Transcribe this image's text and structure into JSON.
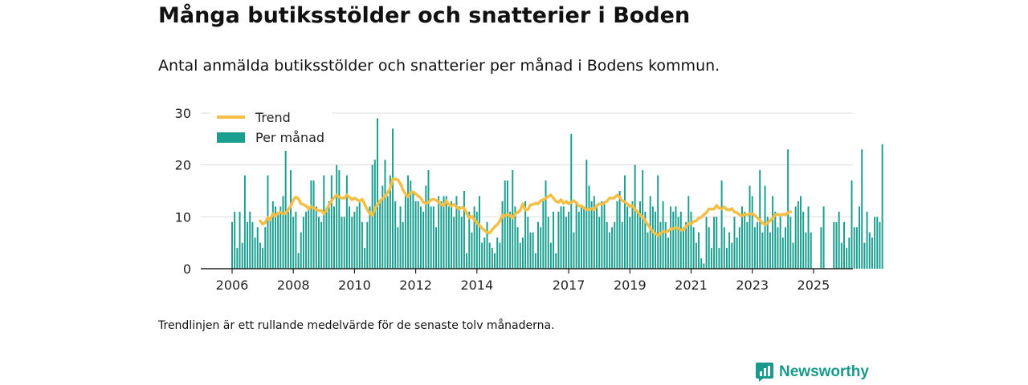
{
  "header": {
    "title": "Många butiksstölder och snatterier i Boden",
    "subtitle": "Antal anmälda butiksstölder och snatterier per månad i Bodens kommun."
  },
  "footnote": "Trendlinjen är ett rullande medelvärde för de senaste tolv månaderna.",
  "brand": {
    "name": "Newsworthy",
    "icon": "newsworthy-logo-icon"
  },
  "colors": {
    "bars": "#1a9e8f",
    "trend": "#f5bf45",
    "grid": "#dddddd",
    "axis": "#222222",
    "brand": "#1a9a8a"
  },
  "chart_data": {
    "type": "bar",
    "title": "Många butiksstölder och snatterier i Boden",
    "subtitle": "Antal anmälda butiksstölder och snatterier per månad i Bodens kommun.",
    "xlabel": "",
    "ylabel": "",
    "ylim": [
      0,
      30
    ],
    "yticks": [
      0,
      10,
      20,
      30
    ],
    "xticks": [
      "2006",
      "2008",
      "2010",
      "2012",
      "2014",
      "2017",
      "2019",
      "2021",
      "2023",
      "2025"
    ],
    "grid": true,
    "legend": {
      "position": "top-left",
      "entries": [
        "Trend",
        "Per månad"
      ]
    },
    "start": "2006-01",
    "series": [
      {
        "name": "Per månad",
        "type": "bar",
        "values": [
          9,
          11,
          4,
          11,
          5,
          18,
          9,
          11,
          9,
          6,
          8,
          5,
          4,
          8,
          18,
          10,
          13,
          12,
          11,
          12,
          14,
          24,
          11,
          19,
          10,
          11,
          3,
          7,
          10,
          11,
          12,
          17,
          17,
          12,
          10,
          9,
          18,
          11,
          13,
          18,
          12,
          20,
          19,
          10,
          10,
          18,
          12,
          10,
          11,
          12,
          13,
          9,
          4,
          9,
          12,
          20,
          21,
          29,
          13,
          16,
          21,
          14,
          18,
          27,
          13,
          8,
          12,
          9,
          14,
          18,
          17,
          15,
          13,
          13,
          12,
          11,
          16,
          19,
          12,
          12,
          8,
          14,
          13,
          14,
          14,
          12,
          13,
          10,
          14,
          12,
          10,
          15,
          3,
          11,
          7,
          12,
          11,
          14,
          5,
          6,
          9,
          5,
          4,
          3,
          6,
          5,
          13,
          17,
          17,
          11,
          19,
          12,
          8,
          5,
          6,
          13,
          10,
          7,
          7,
          3,
          9,
          8,
          13,
          17,
          10,
          5,
          11,
          3,
          11,
          12,
          12,
          10,
          11,
          26,
          7,
          13,
          11,
          12,
          12,
          21,
          16,
          13,
          14,
          12,
          10,
          13,
          13,
          9,
          7,
          8,
          9,
          13,
          15,
          9,
          18,
          12,
          10,
          13,
          20,
          11,
          13,
          19,
          11,
          7,
          14,
          12,
          11,
          18,
          9,
          13,
          9,
          6,
          12,
          11,
          12,
          10,
          11,
          8,
          9,
          14,
          11,
          8,
          5,
          7,
          2,
          1,
          10,
          8,
          4,
          10,
          10,
          4,
          17,
          8,
          4,
          7,
          5,
          10,
          6,
          8,
          12,
          11,
          9,
          16,
          14,
          8,
          9,
          19,
          7,
          16,
          10,
          7,
          14,
          11,
          8,
          10,
          6,
          8,
          23,
          10,
          5,
          12,
          13,
          14,
          11,
          7,
          12,
          7,
          0,
          0,
          0,
          8,
          12,
          0,
          0,
          0,
          9,
          9,
          11,
          5,
          9,
          4,
          6,
          17,
          8,
          8,
          12,
          23,
          5,
          11,
          7,
          6,
          10,
          10,
          9,
          24
        ]
      },
      {
        "name": "Trend",
        "type": "line",
        "start_offset": 11,
        "values": [
          9.2,
          8.6,
          8.9,
          9.9,
          9.5,
          10.6,
          10.2,
          10.7,
          10.9,
          10.6,
          10.7,
          11.4,
          12.1,
          13.3,
          13.8,
          13.5,
          12.5,
          12.4,
          12.1,
          11.5,
          12.0,
          11.7,
          11.4,
          11.2,
          11.2,
          10.6,
          11.3,
          12.3,
          13.1,
          13.7,
          14.2,
          13.8,
          13.6,
          13.6,
          14.2,
          13.8,
          13.3,
          13.6,
          13.3,
          13.0,
          13.4,
          12.4,
          11.4,
          10.6,
          10.3,
          11.6,
          12.3,
          13.1,
          13.5,
          14.0,
          14.7,
          15.5,
          17.3,
          17.3,
          17.1,
          16.4,
          15.2,
          14.4,
          13.9,
          14.7,
          14.8,
          14.4,
          14.0,
          13.6,
          12.8,
          12.6,
          12.8,
          13.3,
          13.4,
          13.2,
          12.9,
          12.3,
          12.2,
          13.1,
          12.4,
          12.1,
          12.4,
          11.9,
          11.5,
          11.8,
          11.7,
          10.7,
          9.8,
          10.1,
          9.4,
          8.9,
          8.4,
          7.8,
          7.4,
          7.0,
          6.9,
          7.5,
          8.1,
          8.5,
          9.2,
          10.3,
          10.2,
          10.5,
          10.2,
          9.8,
          10.6,
          10.8,
          11.3,
          12.5,
          11.3,
          11.4,
          12.3,
          12.4,
          12.6,
          12.5,
          13.1,
          13.3,
          13.6,
          13.9,
          14.2,
          13.6,
          13.0,
          12.8,
          13.3,
          12.6,
          13.0,
          12.5,
          12.8,
          13.1,
          12.7,
          12.1,
          12.1,
          11.7,
          11.4,
          11.4,
          11.6,
          11.4,
          12.2,
          12.5,
          12.4,
          12.7,
          13.0,
          13.6,
          13.6,
          13.7,
          14.2,
          13.8,
          13.1,
          12.9,
          12.5,
          12.0,
          12.2,
          11.4,
          11.0,
          10.3,
          10.0,
          9.2,
          8.5,
          7.8,
          7.1,
          6.8,
          6.4,
          6.8,
          7.2,
          7.1,
          7.2,
          7.7,
          7.7,
          7.9,
          7.8,
          7.4,
          7.5,
          8.2,
          8.7,
          8.7,
          9.1,
          9.2,
          9.8,
          9.9,
          10.4,
          10.8,
          11.5,
          11.5,
          11.5,
          12.2,
          11.7,
          11.5,
          11.9,
          11.4,
          11.3,
          11.6,
          10.9,
          10.8,
          10.4,
          10.2,
          10.5,
          10.4,
          10.6,
          10.6,
          10.3,
          9.8,
          9.3,
          8.8,
          8.5,
          8.8,
          9.3,
          9.8,
          10.4,
          10.5,
          10.3,
          10.5,
          10.4,
          10.8,
          11.0
        ]
      }
    ]
  }
}
